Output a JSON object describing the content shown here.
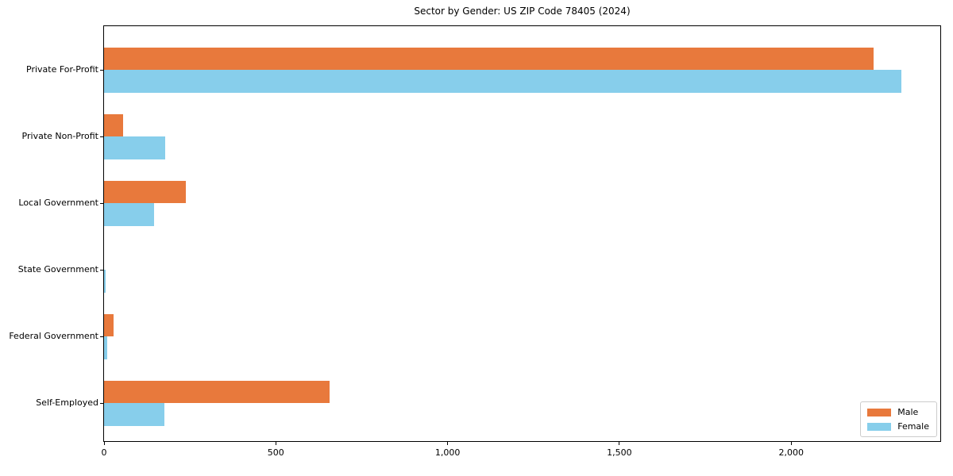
{
  "title": "Sector by Gender: US ZIP Code 78405 (2024)",
  "colors": {
    "male": "#e8793c",
    "female": "#87ceeb",
    "axis": "#000000",
    "legend_border": "#cccccc",
    "background": "#ffffff"
  },
  "chart_data": {
    "type": "bar",
    "orientation": "horizontal",
    "title": "Sector by Gender: US ZIP Code 78405 (2024)",
    "categories": [
      "Private For-Profit",
      "Private Non-Profit",
      "Local Government",
      "State Government",
      "Federal Government",
      "Self-Employed"
    ],
    "series": [
      {
        "name": "Male",
        "color": "#e8793c",
        "values": [
          2240,
          56,
          238,
          0,
          27,
          656
        ]
      },
      {
        "name": "Female",
        "color": "#87ceeb",
        "values": [
          2320,
          179,
          145,
          5,
          9,
          176
        ]
      }
    ],
    "xlabel": "",
    "ylabel": "",
    "xlim": [
      0,
      2434
    ],
    "xticks": [
      0,
      500,
      1000,
      1500,
      2000
    ],
    "xtick_labels": [
      "0",
      "500",
      "1,000",
      "1,500",
      "2,000"
    ],
    "grid": false,
    "legend": {
      "position": "lower right",
      "entries": [
        "Male",
        "Female"
      ]
    }
  }
}
